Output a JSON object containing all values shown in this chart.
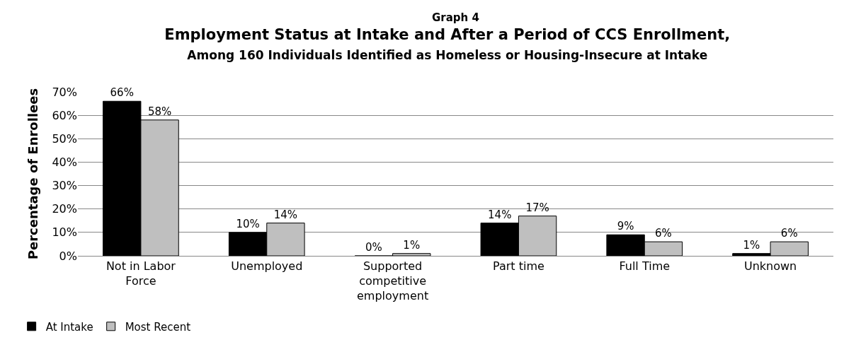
{
  "chart_data": {
    "type": "bar",
    "title": "Employment Status at Intake and After a Period of CCS Enrollment,",
    "subtitle": "Among 160 Individuals Identified as Homeless or Housing-Insecure at Intake",
    "ylabel": "Percentage of Enrollees",
    "annotations": [
      "Graph 4"
    ],
    "categories": [
      "Not in Labor Force",
      "Unemployed",
      "Supported competitive employment",
      "Part time",
      "Full Time",
      "Unknown"
    ],
    "series": [
      {
        "name": "At Intake",
        "color": "#000000",
        "values": [
          66,
          10,
          0,
          14,
          9,
          1
        ],
        "value_labels": [
          "66%",
          "10%",
          "0%",
          "14%",
          "9%",
          "1%"
        ]
      },
      {
        "name": "Most Recent",
        "color": "#bfbfbf",
        "values": [
          58,
          14,
          1,
          17,
          6,
          6
        ],
        "value_labels": [
          "58%",
          "14%",
          "1%",
          "17%",
          "6%",
          "6%"
        ]
      }
    ],
    "ylim": [
      0,
      70
    ],
    "yticks": [
      {
        "value": 0,
        "label": "0%"
      },
      {
        "value": 10,
        "label": "10%"
      },
      {
        "value": 20,
        "label": "20%"
      },
      {
        "value": 30,
        "label": "30%"
      },
      {
        "value": 40,
        "label": "40%"
      },
      {
        "value": 50,
        "label": "50%"
      },
      {
        "value": 60,
        "label": "60%"
      },
      {
        "value": 70,
        "label": "70%"
      }
    ],
    "grid": "y",
    "legend": "bottom left"
  }
}
